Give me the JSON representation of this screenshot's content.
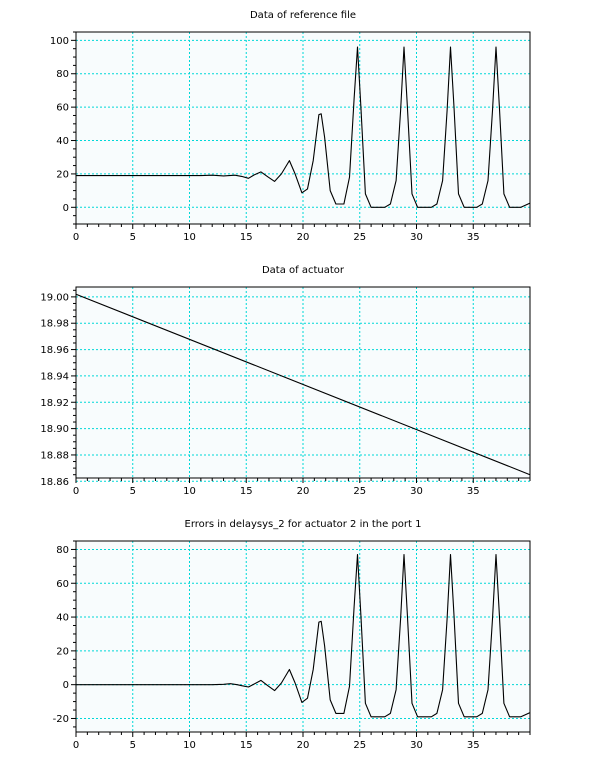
{
  "chart_data": [
    {
      "type": "line",
      "title": "Data of reference file",
      "xlim": [
        0,
        40
      ],
      "ylim": [
        -10,
        105
      ],
      "xticks": [
        0,
        5,
        10,
        15,
        20,
        25,
        30,
        35
      ],
      "yticks": [
        0,
        20,
        40,
        60,
        80,
        100
      ],
      "grid": true,
      "series": [
        {
          "points": [
            [
              0,
              19
            ],
            [
              11,
              19
            ],
            [
              12,
              19.2
            ],
            [
              13,
              18.8
            ],
            [
              14,
              19.2
            ],
            [
              14.6,
              18.5
            ],
            [
              15.2,
              17.4
            ],
            [
              15.7,
              19.4
            ],
            [
              16.3,
              21.2
            ],
            [
              16.9,
              18.3
            ],
            [
              17.5,
              15.5
            ],
            [
              18.1,
              20
            ],
            [
              18.8,
              28
            ],
            [
              19.3,
              20
            ],
            [
              19.9,
              8.7
            ],
            [
              20.4,
              11
            ],
            [
              20.9,
              28
            ],
            [
              21.4,
              55.5
            ],
            [
              21.6,
              56
            ],
            [
              21.9,
              42
            ],
            [
              22.4,
              10
            ],
            [
              22.9,
              2
            ],
            [
              23.6,
              2
            ],
            [
              24.1,
              18
            ],
            [
              24.5,
              65
            ],
            [
              24.8,
              96
            ],
            [
              25.1,
              60
            ],
            [
              25.5,
              8
            ],
            [
              26,
              0
            ],
            [
              27.2,
              0
            ],
            [
              27.7,
              2
            ],
            [
              28.2,
              16
            ],
            [
              28.6,
              58
            ],
            [
              28.9,
              96
            ],
            [
              29.2,
              60
            ],
            [
              29.6,
              8
            ],
            [
              30.1,
              0
            ],
            [
              31.3,
              0
            ],
            [
              31.8,
              2
            ],
            [
              32.3,
              16
            ],
            [
              32.7,
              58
            ],
            [
              33,
              96
            ],
            [
              33.3,
              60
            ],
            [
              33.7,
              8
            ],
            [
              34.2,
              0
            ],
            [
              35.3,
              0
            ],
            [
              35.8,
              2
            ],
            [
              36.3,
              16
            ],
            [
              36.7,
              58
            ],
            [
              37,
              96
            ],
            [
              37.3,
              60
            ],
            [
              37.7,
              8
            ],
            [
              38.2,
              0
            ],
            [
              39.2,
              0
            ],
            [
              40,
              2.5
            ]
          ]
        }
      ]
    },
    {
      "type": "line",
      "title": "Data of actuator",
      "xlim": [
        0,
        40
      ],
      "ylim": [
        18.8625,
        19.0075
      ],
      "xticks": [
        0,
        5,
        10,
        15,
        20,
        25,
        30,
        35
      ],
      "yticks": [
        18.86,
        18.88,
        18.9,
        18.92,
        18.94,
        18.96,
        18.98,
        19.0
      ],
      "ytick_labels": [
        "18.86",
        "18.88",
        "18.90",
        "18.92",
        "18.94",
        "18.96",
        "18.98",
        "19.00"
      ],
      "grid": true,
      "series": [
        {
          "points": [
            [
              0,
              19.002
            ],
            [
              40,
              18.865
            ]
          ]
        }
      ]
    },
    {
      "type": "line",
      "title": "Errors in delaysys_2 for actuator 2 in the port 1",
      "xlim": [
        0,
        40
      ],
      "ylim": [
        -28,
        85
      ],
      "xticks": [
        0,
        5,
        10,
        15,
        20,
        25,
        30,
        35
      ],
      "yticks": [
        -20,
        0,
        20,
        40,
        60,
        80
      ],
      "grid": true,
      "series": [
        {
          "points": [
            [
              0,
              0
            ],
            [
              12,
              0
            ],
            [
              13,
              0.2
            ],
            [
              13.6,
              0.6
            ],
            [
              14.2,
              0
            ],
            [
              14.6,
              -0.6
            ],
            [
              15.2,
              -1.4
            ],
            [
              15.7,
              0.4
            ],
            [
              16.3,
              2.5
            ],
            [
              16.9,
              -0.6
            ],
            [
              17.5,
              -3.5
            ],
            [
              18.1,
              1
            ],
            [
              18.8,
              9
            ],
            [
              19.3,
              1
            ],
            [
              19.9,
              -10.5
            ],
            [
              20.4,
              -8
            ],
            [
              20.9,
              9
            ],
            [
              21.4,
              37
            ],
            [
              21.6,
              37.5
            ],
            [
              21.9,
              23
            ],
            [
              22.4,
              -9
            ],
            [
              22.9,
              -17
            ],
            [
              23.6,
              -17
            ],
            [
              24.1,
              -1
            ],
            [
              24.5,
              46
            ],
            [
              24.8,
              77
            ],
            [
              25.1,
              41
            ],
            [
              25.5,
              -11
            ],
            [
              26,
              -19
            ],
            [
              27.2,
              -19
            ],
            [
              27.7,
              -17
            ],
            [
              28.2,
              -3
            ],
            [
              28.6,
              39
            ],
            [
              28.9,
              77
            ],
            [
              29.2,
              41
            ],
            [
              29.6,
              -11
            ],
            [
              30.1,
              -19
            ],
            [
              31.3,
              -19
            ],
            [
              31.8,
              -17
            ],
            [
              32.3,
              -3
            ],
            [
              32.7,
              39
            ],
            [
              33,
              77
            ],
            [
              33.3,
              41
            ],
            [
              33.7,
              -11
            ],
            [
              34.2,
              -19
            ],
            [
              35.3,
              -19
            ],
            [
              35.8,
              -17
            ],
            [
              36.3,
              -3
            ],
            [
              36.7,
              39
            ],
            [
              37,
              77
            ],
            [
              37.3,
              41
            ],
            [
              37.7,
              -11
            ],
            [
              38.2,
              -19
            ],
            [
              39.2,
              -19
            ],
            [
              40,
              -16.5
            ]
          ]
        }
      ]
    }
  ]
}
